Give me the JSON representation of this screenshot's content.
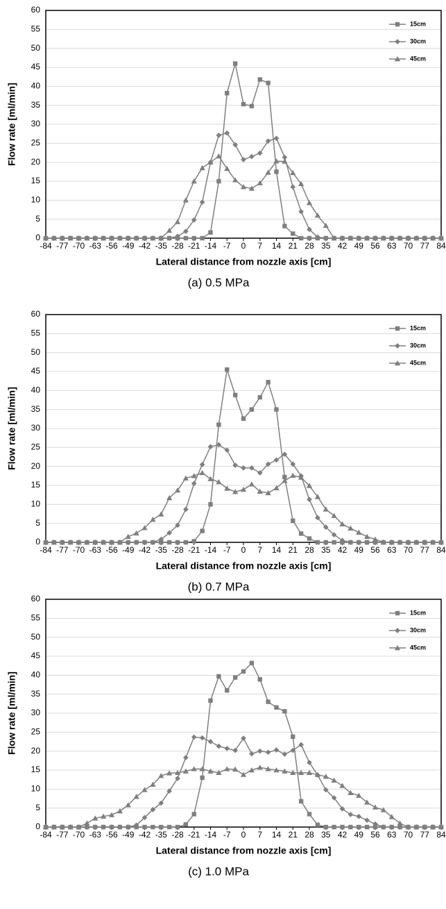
{
  "chart_data": [
    {
      "type": "line",
      "caption": "(a) 0.5 MPa",
      "y_label": "Flow rate [ml/min]",
      "x_label": "Lateral distance from nozzle axis [cm]",
      "x": [
        -84,
        -80.5,
        -77,
        -73.5,
        -70,
        -66.5,
        -63,
        -59.5,
        -56,
        -52.5,
        -49,
        -45.5,
        -42,
        -38.5,
        -35,
        -31.5,
        -28,
        -24.5,
        -21,
        -17.5,
        -14,
        -10.5,
        -7,
        -3.5,
        0,
        3.5,
        7,
        10.5,
        14,
        17.5,
        21,
        24.5,
        28,
        31.5,
        35,
        38.5,
        42,
        45.5,
        49,
        52.5,
        56,
        59.5,
        63,
        66.5,
        70,
        73.5,
        77,
        80.5,
        84
      ],
      "xlim": [
        -84,
        84
      ],
      "xticks": [
        -84,
        -77,
        -70,
        -63,
        -56,
        -49,
        -42,
        -35,
        -28,
        -21,
        -14,
        -7,
        0,
        7,
        14,
        21,
        28,
        35,
        42,
        49,
        56,
        63,
        70,
        77,
        84
      ],
      "ylim": [
        0,
        60
      ],
      "yticks": [
        0,
        5,
        10,
        15,
        20,
        25,
        30,
        35,
        40,
        45,
        50,
        55,
        60
      ],
      "grid": true,
      "legend": "upper right",
      "series": [
        {
          "name": "15cm",
          "color": "#7f7f7f",
          "marker": "square",
          "values": [
            0,
            0,
            0,
            0,
            0,
            0,
            0,
            0,
            0,
            0,
            0,
            0,
            0,
            0,
            0,
            0,
            0,
            0,
            0,
            0,
            1.5,
            15,
            38.2,
            46,
            35.3,
            34.8,
            41.8,
            40.9,
            17.5,
            3.2,
            1.2,
            0,
            0,
            0,
            0,
            0,
            0,
            0,
            0,
            0,
            0,
            0,
            0,
            0,
            0,
            0,
            0,
            0,
            0
          ]
        },
        {
          "name": "30cm",
          "color": "#7f7f7f",
          "marker": "diamond",
          "values": [
            0,
            0,
            0,
            0,
            0,
            0,
            0,
            0,
            0,
            0,
            0,
            0,
            0,
            0,
            0,
            0,
            0.5,
            1.8,
            4.8,
            9.5,
            20,
            27.1,
            27.7,
            24.6,
            20.7,
            21.5,
            22.4,
            25.6,
            26.3,
            21.3,
            13.5,
            7,
            2.3,
            0.3,
            0,
            0,
            0,
            0,
            0,
            0,
            0,
            0,
            0,
            0,
            0,
            0,
            0,
            0,
            0
          ]
        },
        {
          "name": "45cm",
          "color": "#7f7f7f",
          "marker": "triangle",
          "values": [
            0,
            0,
            0,
            0,
            0,
            0,
            0,
            0,
            0,
            0,
            0,
            0,
            0,
            0,
            0,
            2,
            4.3,
            10,
            15,
            18.5,
            20,
            21.6,
            18.3,
            15.3,
            13.5,
            13.1,
            14.5,
            17.3,
            20.3,
            20.2,
            17.2,
            14.3,
            9.3,
            6,
            3.3,
            0,
            0,
            0,
            0,
            0,
            0,
            0,
            0,
            0,
            0,
            0,
            0,
            0,
            0
          ]
        }
      ]
    },
    {
      "type": "line",
      "caption": "(b) 0.7 MPa",
      "y_label": "Flow rate [ml/min]",
      "x_label": "Lateral distance from nozzle axis [cm]",
      "x": [
        -84,
        -80.5,
        -77,
        -73.5,
        -70,
        -66.5,
        -63,
        -59.5,
        -56,
        -52.5,
        -49,
        -45.5,
        -42,
        -38.5,
        -35,
        -31.5,
        -28,
        -24.5,
        -21,
        -17.5,
        -14,
        -10.5,
        -7,
        -3.5,
        0,
        3.5,
        7,
        10.5,
        14,
        17.5,
        21,
        24.5,
        28,
        31.5,
        35,
        38.5,
        42,
        45.5,
        49,
        52.5,
        56,
        59.5,
        63,
        66.5,
        70,
        73.5,
        77,
        80.5,
        84
      ],
      "xlim": [
        -84,
        84
      ],
      "xticks": [
        -84,
        -77,
        -70,
        -63,
        -56,
        -49,
        -42,
        -35,
        -28,
        -21,
        -14,
        -7,
        0,
        7,
        14,
        21,
        28,
        35,
        42,
        49,
        56,
        63,
        70,
        77,
        84
      ],
      "ylim": [
        0,
        60
      ],
      "yticks": [
        0,
        5,
        10,
        15,
        20,
        25,
        30,
        35,
        40,
        45,
        50,
        55,
        60
      ],
      "grid": true,
      "legend": "upper right",
      "series": [
        {
          "name": "15cm",
          "color": "#7f7f7f",
          "marker": "square",
          "values": [
            0,
            0,
            0,
            0,
            0,
            0,
            0,
            0,
            0,
            0,
            0,
            0,
            0,
            0,
            0,
            0,
            0,
            0,
            0.3,
            3,
            10,
            31,
            45.5,
            38.8,
            32.6,
            35,
            38.2,
            42.2,
            35,
            17.2,
            5.7,
            2.3,
            1,
            0,
            0,
            0,
            0,
            0,
            0,
            0,
            0,
            0,
            0,
            0,
            0,
            0,
            0,
            0,
            0
          ]
        },
        {
          "name": "30cm",
          "color": "#7f7f7f",
          "marker": "diamond",
          "values": [
            0,
            0,
            0,
            0,
            0,
            0,
            0,
            0,
            0,
            0,
            0,
            0,
            0,
            0,
            0.8,
            2.5,
            4.5,
            8.7,
            15.5,
            20.5,
            25.2,
            25.7,
            24.3,
            20.3,
            19.6,
            19.6,
            18.3,
            20.6,
            21.7,
            23.2,
            20.6,
            17.5,
            11.3,
            6.5,
            4,
            2,
            0.5,
            0,
            0,
            0,
            0,
            0,
            0,
            0,
            0,
            0,
            0,
            0,
            0
          ]
        },
        {
          "name": "45cm",
          "color": "#7f7f7f",
          "marker": "triangle",
          "values": [
            0,
            0,
            0,
            0,
            0,
            0,
            0,
            0,
            0,
            0,
            1.5,
            2.4,
            3.8,
            6,
            7.4,
            11.7,
            13.7,
            16.9,
            17.5,
            18.3,
            16.7,
            15.9,
            14.2,
            13.3,
            13.9,
            15.3,
            13.4,
            13,
            14.3,
            16.2,
            17.6,
            17.1,
            14.9,
            12,
            8.7,
            7,
            4.8,
            3.7,
            2.6,
            1.5,
            0.8,
            0,
            0,
            0,
            0,
            0,
            0,
            0,
            0
          ]
        }
      ]
    },
    {
      "type": "line",
      "caption": "(c) 1.0 MPa",
      "y_label": "Flow rate [ml/min]",
      "x_label": "Lateral distance from nozzle axis [cm]",
      "x": [
        -84,
        -80.5,
        -77,
        -73.5,
        -70,
        -66.5,
        -63,
        -59.5,
        -56,
        -52.5,
        -49,
        -45.5,
        -42,
        -38.5,
        -35,
        -31.5,
        -28,
        -24.5,
        -21,
        -17.5,
        -14,
        -10.5,
        -7,
        -3.5,
        0,
        3.5,
        7,
        10.5,
        14,
        17.5,
        21,
        24.5,
        28,
        31.5,
        35,
        38.5,
        42,
        45.5,
        49,
        52.5,
        56,
        59.5,
        63,
        66.5,
        70,
        73.5,
        77,
        80.5,
        84
      ],
      "xlim": [
        -84,
        84
      ],
      "xticks": [
        -84,
        -77,
        -70,
        -63,
        -56,
        -49,
        -42,
        -35,
        -28,
        -21,
        -14,
        -7,
        0,
        7,
        14,
        21,
        28,
        35,
        42,
        49,
        56,
        63,
        70,
        77,
        84
      ],
      "ylim": [
        0,
        60
      ],
      "yticks": [
        0,
        5,
        10,
        15,
        20,
        25,
        30,
        35,
        40,
        45,
        50,
        55,
        60
      ],
      "grid": true,
      "legend": "upper right",
      "series": [
        {
          "name": "15cm",
          "color": "#7f7f7f",
          "marker": "square",
          "values": [
            0,
            0,
            0,
            0,
            0,
            0,
            0,
            0,
            0,
            0,
            0,
            0,
            0,
            0,
            0,
            0,
            0,
            0.7,
            3.4,
            13,
            33.3,
            39.7,
            36,
            39.4,
            41,
            43.2,
            38.9,
            33,
            31.5,
            30.5,
            23.8,
            6.8,
            3.4,
            0.6,
            0,
            0,
            0,
            0,
            0,
            0,
            0,
            0,
            0,
            0,
            0,
            0,
            0,
            0,
            0
          ]
        },
        {
          "name": "30cm",
          "color": "#7f7f7f",
          "marker": "diamond",
          "values": [
            0,
            0,
            0,
            0,
            0,
            0,
            0,
            0,
            0,
            0,
            0,
            0.5,
            2.5,
            4.6,
            6.3,
            9.5,
            12.8,
            18.3,
            23.7,
            23.5,
            22.5,
            21.3,
            20.7,
            20.2,
            23.4,
            19.3,
            20,
            19.7,
            20.3,
            19.2,
            20.2,
            21.7,
            17,
            13.7,
            9.8,
            7.7,
            4.8,
            3.3,
            2.8,
            1.8,
            0.8,
            0,
            0,
            0,
            0,
            0,
            0,
            0,
            0
          ]
        },
        {
          "name": "45cm",
          "color": "#7f7f7f",
          "marker": "triangle",
          "values": [
            0,
            0,
            0,
            0,
            0,
            1,
            2.3,
            2.8,
            3.2,
            4.2,
            5.8,
            8,
            9.8,
            11.2,
            13.5,
            14.2,
            14.3,
            14.7,
            15.3,
            15.3,
            14.7,
            14.3,
            15.3,
            15.2,
            13.8,
            15,
            15.7,
            15.3,
            15,
            14.7,
            14.3,
            14.3,
            14.3,
            13.8,
            13.3,
            12.3,
            10.9,
            9,
            8.3,
            6.5,
            5.2,
            4.5,
            2.7,
            1,
            0,
            0,
            0,
            0,
            0
          ]
        }
      ]
    }
  ]
}
